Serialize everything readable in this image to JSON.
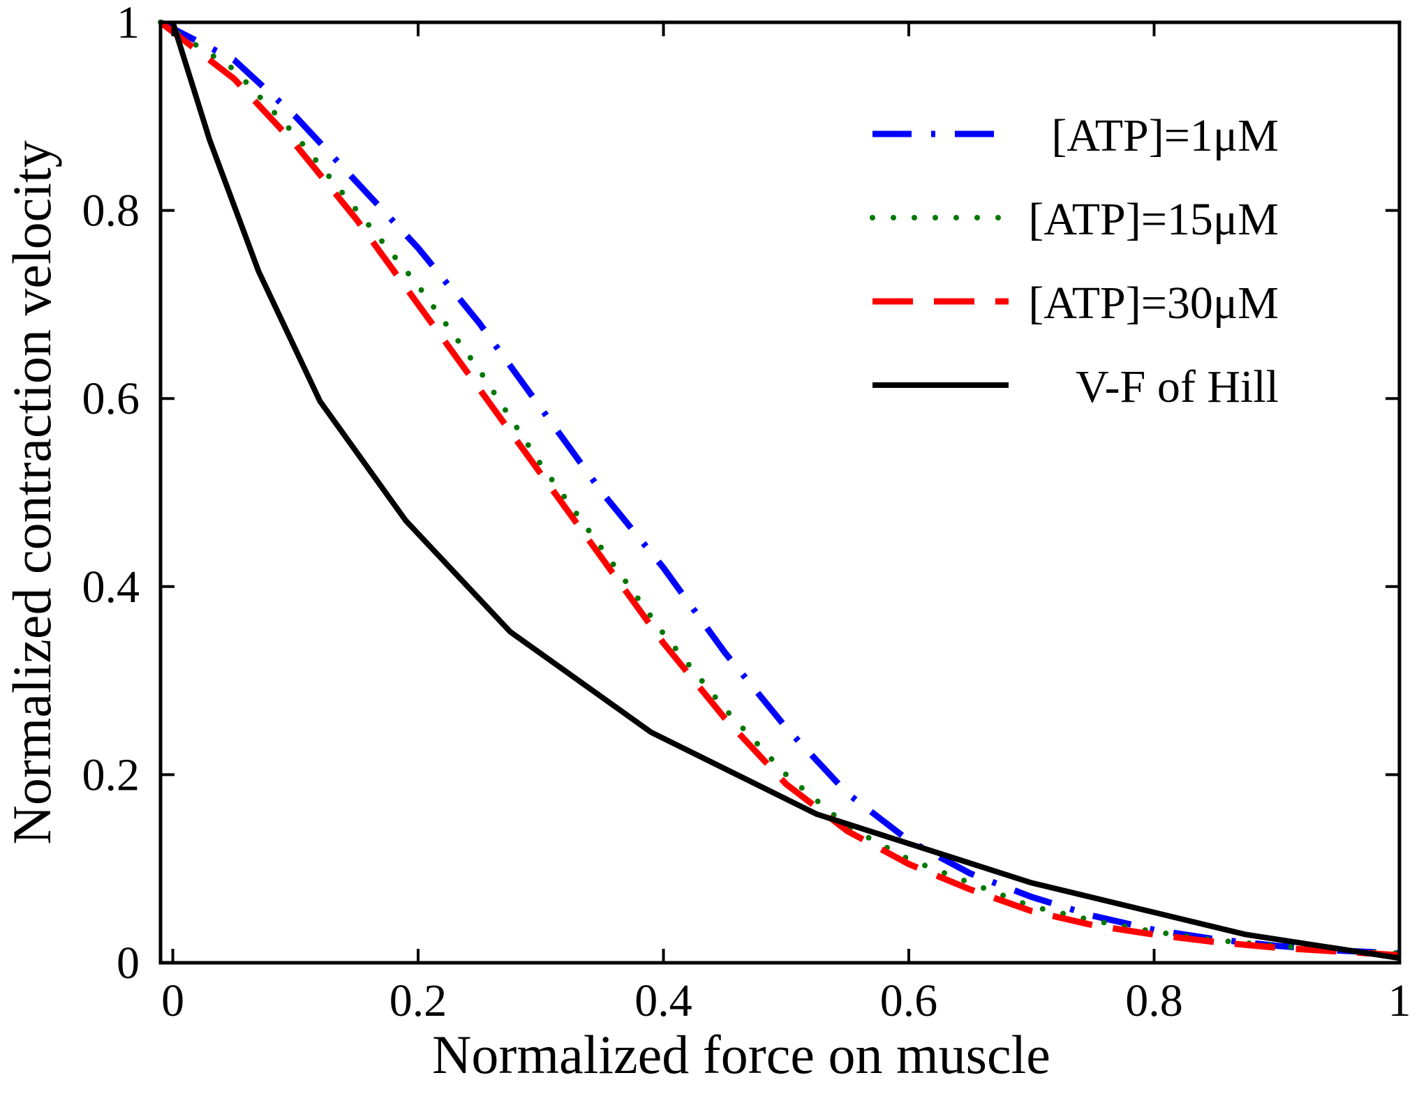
{
  "chart_data": {
    "type": "line",
    "title": "",
    "xlabel": "Normalized force on muscle",
    "ylabel": "Normalized contraction velocity",
    "xlim": [
      -0.01,
      1.0
    ],
    "ylim": [
      0,
      1
    ],
    "xticks": [
      0,
      0.2,
      0.4,
      0.6,
      0.8,
      1
    ],
    "xtick_labels": [
      "0",
      "0.2",
      "0.4",
      "0.6",
      "0.8",
      "1"
    ],
    "yticks": [
      0,
      0.2,
      0.4,
      0.6,
      0.8,
      1
    ],
    "ytick_labels": [
      "0",
      "0.2",
      "0.4",
      "0.6",
      "0.8",
      "1"
    ],
    "grid": false,
    "legend_position": "top-right",
    "series": [
      {
        "name": "[ATP]=1μM",
        "color": "#0000ff",
        "style": "dashdot",
        "x": [
          -0.01,
          0.05,
          0.1,
          0.15,
          0.2,
          0.25,
          0.3,
          0.35,
          0.4,
          0.45,
          0.5,
          0.55,
          0.6,
          0.65,
          0.7,
          0.75,
          0.8,
          0.85,
          0.9,
          0.95,
          1.0
        ],
        "y": [
          1.0,
          0.96,
          0.9,
          0.83,
          0.76,
          0.68,
          0.59,
          0.5,
          0.42,
          0.33,
          0.25,
          0.18,
          0.13,
          0.095,
          0.07,
          0.05,
          0.035,
          0.025,
          0.018,
          0.013,
          0.01
        ]
      },
      {
        "name": "[ATP]=15μM",
        "color": "#007700",
        "style": "dotted",
        "x": [
          -0.01,
          0.05,
          0.1,
          0.15,
          0.2,
          0.25,
          0.3,
          0.35,
          0.4,
          0.45,
          0.5,
          0.55,
          0.6,
          0.65,
          0.7,
          0.75,
          0.8,
          0.85,
          0.9,
          0.95,
          1.0
        ],
        "y": [
          1.0,
          0.95,
          0.88,
          0.8,
          0.72,
          0.63,
          0.53,
          0.44,
          0.35,
          0.27,
          0.2,
          0.145,
          0.11,
          0.085,
          0.06,
          0.045,
          0.033,
          0.024,
          0.018,
          0.013,
          0.01
        ]
      },
      {
        "name": "[ATP]=30μM",
        "color": "#ff0000",
        "style": "dashed",
        "x": [
          -0.01,
          0.05,
          0.1,
          0.15,
          0.2,
          0.25,
          0.3,
          0.35,
          0.4,
          0.45,
          0.5,
          0.55,
          0.6,
          0.65,
          0.7,
          0.75,
          0.8,
          0.85,
          0.9,
          0.95,
          1.0
        ],
        "y": [
          1.0,
          0.94,
          0.87,
          0.79,
          0.7,
          0.61,
          0.52,
          0.43,
          0.34,
          0.26,
          0.19,
          0.14,
          0.105,
          0.078,
          0.055,
          0.04,
          0.03,
          0.022,
          0.016,
          0.012,
          0.008
        ]
      },
      {
        "name": "V-F of Hill",
        "color": "#000000",
        "style": "solid",
        "x": [
          0.0,
          0.03,
          0.07,
          0.12,
          0.19,
          0.275,
          0.39,
          0.525,
          0.7,
          0.875,
          1.0
        ],
        "y": [
          1.0,
          0.875,
          0.735,
          0.597,
          0.47,
          0.352,
          0.245,
          0.158,
          0.085,
          0.03,
          0.005
        ]
      }
    ]
  }
}
